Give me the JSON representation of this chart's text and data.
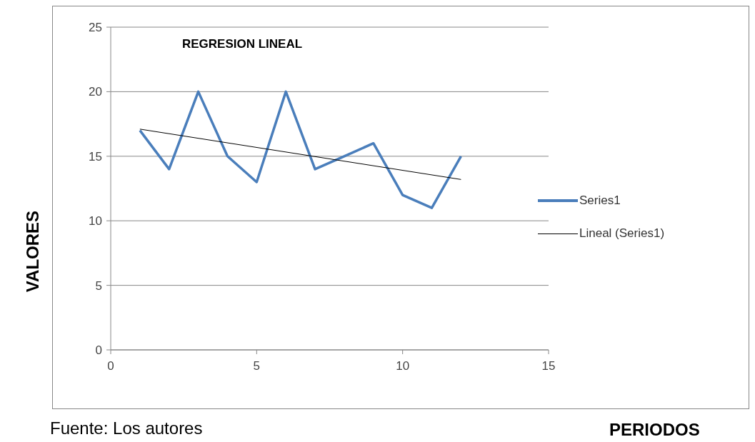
{
  "chart_data": {
    "type": "line",
    "title": "REGRESION LINEAL",
    "xlabel": "PERIODOS",
    "ylabel": "VALORES",
    "annotations": [
      "Fuente: Los autores"
    ],
    "x": [
      1,
      2,
      3,
      4,
      5,
      6,
      7,
      8,
      9,
      10,
      11,
      12
    ],
    "series": [
      {
        "name": "Series1",
        "color": "#4a7ebb",
        "values": [
          17,
          14,
          20,
          15,
          13,
          20,
          14,
          15,
          16,
          12,
          11,
          15
        ]
      },
      {
        "name": "Lineal (Series1)",
        "color": "#000000",
        "x": [
          1,
          12
        ],
        "values": [
          17.1,
          13.2
        ]
      }
    ],
    "xlim": [
      0,
      15
    ],
    "xticks": [
      0,
      5,
      10,
      15
    ],
    "ylim": [
      0,
      25
    ],
    "yticks": [
      0,
      5,
      10,
      15,
      20,
      25
    ],
    "grid": "y",
    "legend": "right",
    "marker": "none",
    "line_style": "solid"
  }
}
